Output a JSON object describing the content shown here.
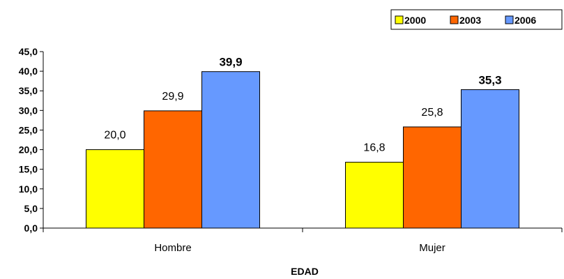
{
  "chart_data": {
    "type": "bar",
    "categories": [
      "Hombre",
      "Mujer"
    ],
    "series": [
      {
        "name": "2000",
        "values": [
          20.0,
          16.8
        ],
        "color": "#ffff00",
        "labels": [
          "20,0",
          "16,8"
        ]
      },
      {
        "name": "2003",
        "values": [
          29.9,
          25.8
        ],
        "color": "#ff6600",
        "labels": [
          "29,9",
          "25,8"
        ]
      },
      {
        "name": "2006",
        "values": [
          39.9,
          35.3
        ],
        "color": "#6699ff",
        "labels": [
          "39,9",
          "35,3"
        ]
      }
    ],
    "bold_label_series": "2006",
    "xlabel": "EDAD",
    "ylabel": "",
    "ylim": [
      0,
      45
    ],
    "yticks": [
      0,
      5,
      10,
      15,
      20,
      25,
      30,
      35,
      40,
      45
    ],
    "ytick_labels": [
      "0,0",
      "5,0",
      "10,0",
      "15,0",
      "20,0",
      "25,0",
      "30,0",
      "35,0",
      "40,0",
      "45,0"
    ],
    "grid": false,
    "legend_position": "top-right"
  }
}
